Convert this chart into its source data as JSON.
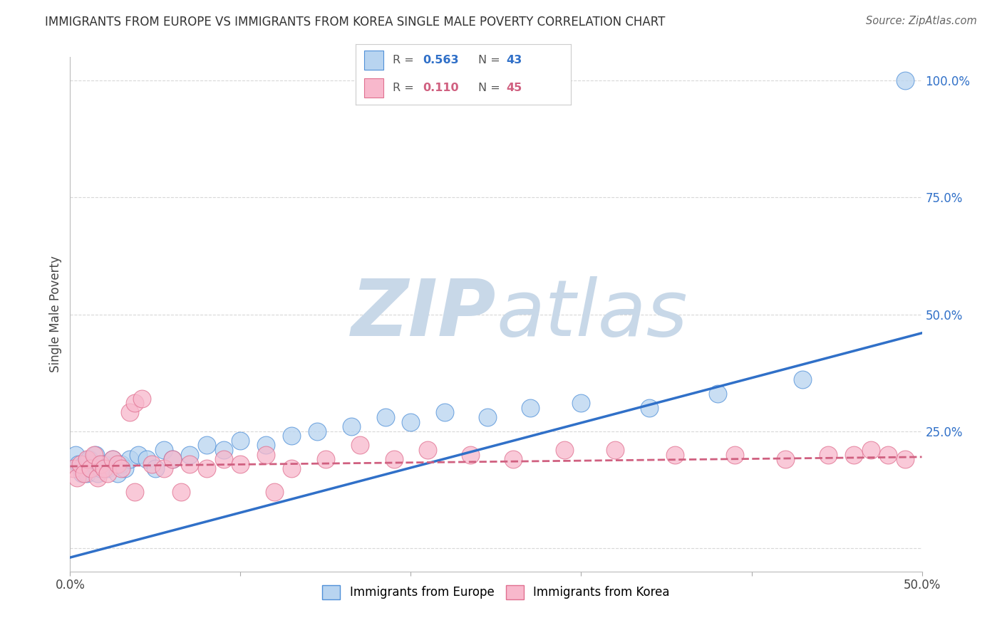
{
  "title": "IMMIGRANTS FROM EUROPE VS IMMIGRANTS FROM KOREA SINGLE MALE POVERTY CORRELATION CHART",
  "source": "Source: ZipAtlas.com",
  "ylabel": "Single Male Poverty",
  "xlim": [
    0.0,
    0.5
  ],
  "ylim": [
    -0.05,
    1.05
  ],
  "xtick_positions": [
    0.0,
    0.1,
    0.2,
    0.3,
    0.4,
    0.5
  ],
  "xticklabels": [
    "0.0%",
    "",
    "",
    "",
    "",
    "50.0%"
  ],
  "ytick_positions": [
    0.0,
    0.25,
    0.5,
    0.75,
    1.0
  ],
  "ytick_labels_right": [
    "",
    "25.0%",
    "50.0%",
    "75.0%",
    "100.0%"
  ],
  "europe_fill_color": "#b8d4f0",
  "europe_edge_color": "#5090d8",
  "korea_fill_color": "#f8b8cc",
  "korea_edge_color": "#e07090",
  "europe_line_color": "#3070c8",
  "korea_line_color": "#d06080",
  "watermark_zip": "ZIP",
  "watermark_atlas": "atlas",
  "watermark_color": "#c8d8e8",
  "background_color": "#ffffff",
  "grid_color": "#d8d8d8",
  "europe_R": "0.563",
  "europe_N": "43",
  "korea_R": "0.110",
  "korea_N": "45",
  "legend_text_color": "#555555",
  "europe_x": [
    0.003,
    0.005,
    0.006,
    0.007,
    0.008,
    0.009,
    0.01,
    0.011,
    0.012,
    0.014,
    0.015,
    0.016,
    0.018,
    0.02,
    0.022,
    0.025,
    0.028,
    0.03,
    0.032,
    0.035,
    0.04,
    0.045,
    0.05,
    0.055,
    0.06,
    0.07,
    0.08,
    0.09,
    0.1,
    0.115,
    0.13,
    0.145,
    0.165,
    0.185,
    0.2,
    0.22,
    0.245,
    0.27,
    0.3,
    0.34,
    0.38,
    0.43,
    0.49
  ],
  "europe_y": [
    0.2,
    0.18,
    0.17,
    0.16,
    0.18,
    0.17,
    0.16,
    0.19,
    0.17,
    0.18,
    0.2,
    0.16,
    0.17,
    0.18,
    0.17,
    0.19,
    0.16,
    0.18,
    0.17,
    0.19,
    0.2,
    0.19,
    0.17,
    0.21,
    0.19,
    0.2,
    0.22,
    0.21,
    0.23,
    0.22,
    0.24,
    0.25,
    0.26,
    0.28,
    0.27,
    0.29,
    0.28,
    0.3,
    0.31,
    0.3,
    0.33,
    0.36,
    1.0
  ],
  "korea_x": [
    0.002,
    0.004,
    0.006,
    0.008,
    0.01,
    0.012,
    0.014,
    0.016,
    0.018,
    0.02,
    0.022,
    0.025,
    0.028,
    0.03,
    0.035,
    0.038,
    0.042,
    0.048,
    0.055,
    0.06,
    0.07,
    0.08,
    0.09,
    0.1,
    0.115,
    0.13,
    0.15,
    0.17,
    0.19,
    0.21,
    0.235,
    0.26,
    0.29,
    0.32,
    0.355,
    0.39,
    0.42,
    0.445,
    0.46,
    0.47,
    0.48,
    0.49,
    0.038,
    0.065,
    0.12
  ],
  "korea_y": [
    0.17,
    0.15,
    0.18,
    0.16,
    0.19,
    0.17,
    0.2,
    0.15,
    0.18,
    0.17,
    0.16,
    0.19,
    0.18,
    0.17,
    0.29,
    0.31,
    0.32,
    0.18,
    0.17,
    0.19,
    0.18,
    0.17,
    0.19,
    0.18,
    0.2,
    0.17,
    0.19,
    0.22,
    0.19,
    0.21,
    0.2,
    0.19,
    0.21,
    0.21,
    0.2,
    0.2,
    0.19,
    0.2,
    0.2,
    0.21,
    0.2,
    0.19,
    0.12,
    0.12,
    0.12
  ],
  "europe_line_x0": 0.0,
  "europe_line_y0": -0.02,
  "europe_line_x1": 0.5,
  "europe_line_y1": 0.46,
  "korea_line_x0": 0.0,
  "korea_line_y0": 0.175,
  "korea_line_x1": 0.5,
  "korea_line_y1": 0.195
}
